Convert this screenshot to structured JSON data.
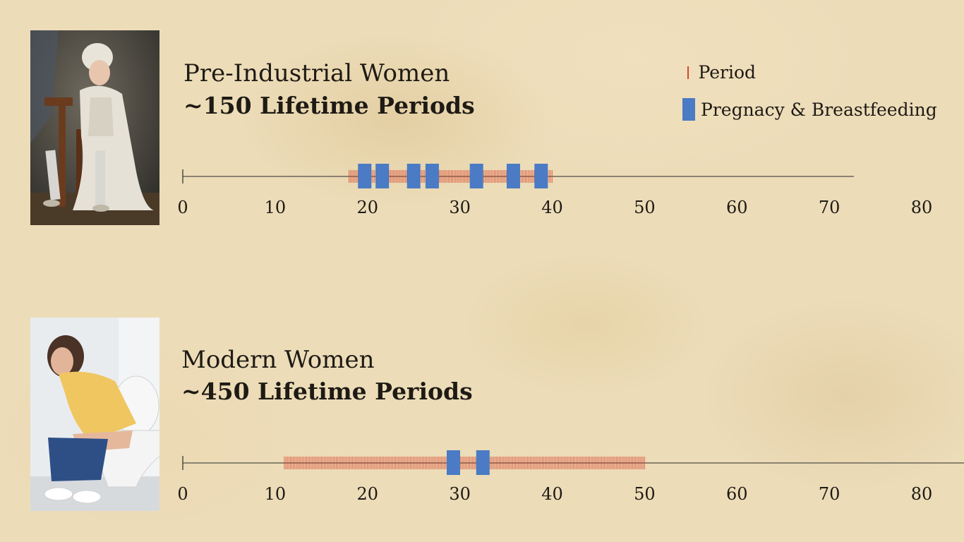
{
  "legend": {
    "period": "Period",
    "pregnancy": "Pregnacy & Breastfeeding"
  },
  "colors": {
    "period": "#d9442e",
    "pregnancy": "#4a7bc4",
    "axis": "#2a2a2a",
    "text": "#1e1a14"
  },
  "rows": [
    {
      "title": "Pre-Industrial Women",
      "subtitle": "~150 Lifetime Periods",
      "photo": "painting-of-woman-seated-icon"
    },
    {
      "title": "Modern Women",
      "subtitle": "~450 Lifetime Periods",
      "photo": "photo-of-woman-on-toilet-icon"
    }
  ],
  "chart_data": [
    {
      "type": "timeline",
      "xlim": [
        0,
        80
      ],
      "ticks": [
        0,
        10,
        20,
        30,
        40,
        50,
        60,
        70,
        80
      ],
      "series": [
        {
          "name": "Period",
          "x_start": 18,
          "x_end": 40
        },
        {
          "name": "Pregnacy & Breastfeeding",
          "values": [
            19.7,
            21.6,
            25.0,
            27.0,
            31.8,
            35.8,
            38.8
          ]
        }
      ]
    },
    {
      "type": "timeline",
      "xlim": [
        0,
        80
      ],
      "ticks": [
        0,
        10,
        20,
        30,
        40,
        50,
        60,
        70,
        80
      ],
      "series": [
        {
          "name": "Period",
          "x_start": 11,
          "x_end": 50
        },
        {
          "name": "Pregnacy & Breastfeeding",
          "values": [
            29.3,
            32.5
          ]
        }
      ]
    }
  ]
}
